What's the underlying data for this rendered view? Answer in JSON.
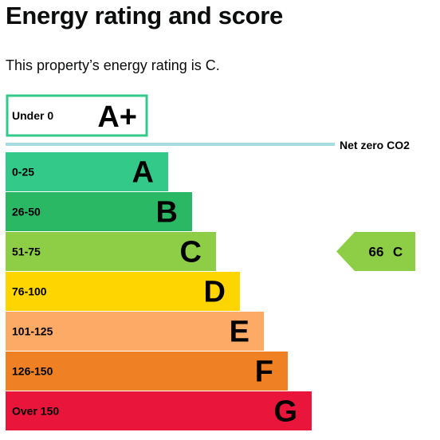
{
  "page": {
    "title": "Energy rating and score",
    "summary": "This property’s energy rating is C."
  },
  "chart_data": {
    "type": "bar",
    "title": "",
    "xlabel": "",
    "ylabel": "",
    "categories": [
      "Under 0",
      "0-25",
      "26-50",
      "51-75",
      "76-100",
      "101-125",
      "126-150",
      "Over 150"
    ],
    "bands": [
      {
        "range": "Under 0",
        "letter": "A+",
        "color": "#ffffff",
        "outline": "#33c989"
      },
      {
        "range": "0-25",
        "letter": "A",
        "color": "#33c989"
      },
      {
        "range": "26-50",
        "letter": "B",
        "color": "#2ab865"
      },
      {
        "range": "51-75",
        "letter": "C",
        "color": "#8dce46"
      },
      {
        "range": "76-100",
        "letter": "D",
        "color": "#ffd500"
      },
      {
        "range": "101-125",
        "letter": "E",
        "color": "#fcaa65"
      },
      {
        "range": "126-150",
        "letter": "F",
        "color": "#ef8023"
      },
      {
        "range": "Over 150",
        "letter": "G",
        "color": "#e9153b"
      }
    ],
    "net_zero_label": "Net zero CO2",
    "net_zero_color": "#a7dbe3",
    "current": {
      "score": 66,
      "score_label": "66",
      "letter": "C",
      "band_index": 3,
      "color": "#8dce46"
    }
  }
}
